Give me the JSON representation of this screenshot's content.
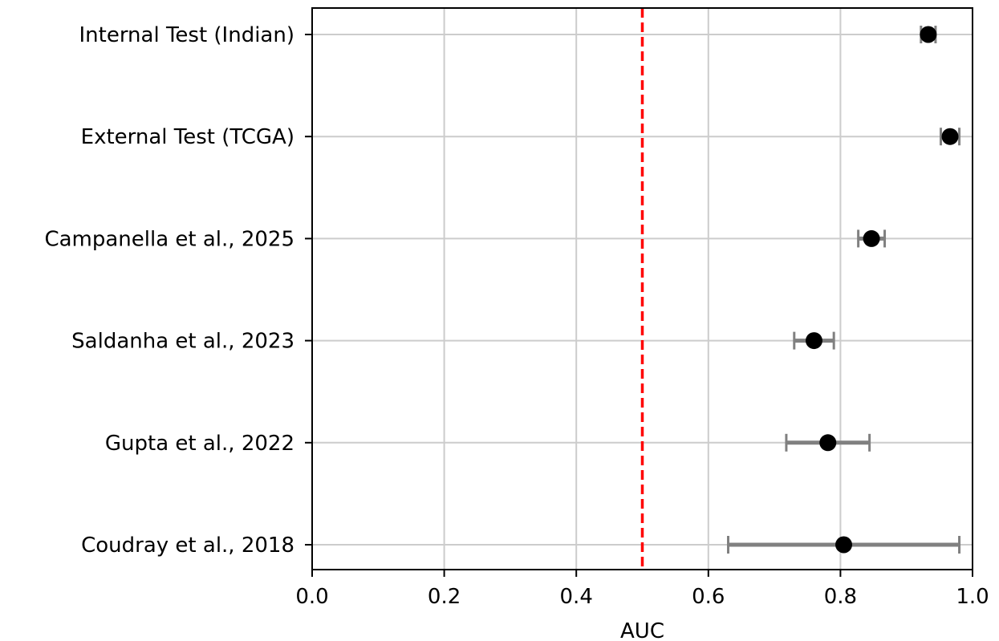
{
  "chart_data": {
    "type": "scatter",
    "subtype": "forest-plot",
    "title": "",
    "xlabel": "AUC",
    "ylabel": "",
    "xlim": [
      0.0,
      1.0
    ],
    "xticks": [
      "0.0",
      "0.2",
      "0.4",
      "0.6",
      "0.8",
      "1.0"
    ],
    "grid": true,
    "reference_line": {
      "x": 0.5,
      "style": "dashed",
      "color": "#ff0000"
    },
    "series": [
      {
        "points": [
          {
            "label": "Internal Test (Indian)",
            "value": 0.933,
            "ci": [
              0.922,
              0.944
            ]
          },
          {
            "label": "External Test (TCGA)",
            "value": 0.966,
            "ci": [
              0.952,
              0.98
            ]
          },
          {
            "label": "Campanella et al., 2025",
            "value": 0.847,
            "ci": [
              0.827,
              0.867
            ]
          },
          {
            "label": "Saldanha et al., 2023",
            "value": 0.76,
            "ci": [
              0.73,
              0.79
            ]
          },
          {
            "label": "Gupta et al., 2022",
            "value": 0.781,
            "ci": [
              0.718,
              0.844
            ]
          },
          {
            "label": "Coudray et al., 2018",
            "value": 0.805,
            "ci": [
              0.63,
              0.98
            ]
          }
        ]
      }
    ],
    "colors": {
      "point": "#000000",
      "errorbar": "#808080",
      "grid": "#cccccc",
      "reference": "#ff0000"
    }
  }
}
